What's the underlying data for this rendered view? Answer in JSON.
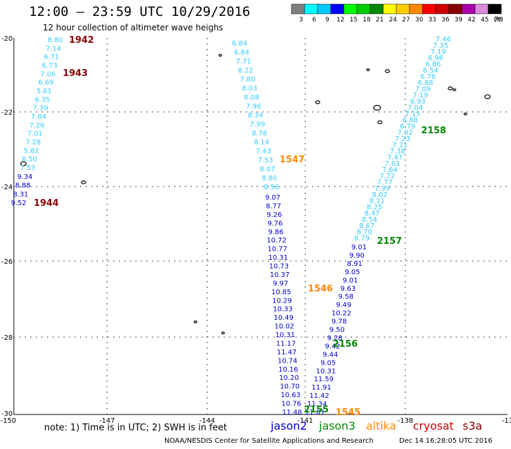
{
  "header": {
    "title": "12:00 – 23:59 UTC 10/29/2016",
    "subtitle": "12 hour collection of altimeter wave heighs"
  },
  "color_scale": {
    "unit": "(ft)",
    "bins": [
      {
        "label": "3",
        "color": "#808080"
      },
      {
        "label": "6",
        "color": "#00ffff"
      },
      {
        "label": "9",
        "color": "#00c8ff"
      },
      {
        "label": "12",
        "color": "#0000ff"
      },
      {
        "label": "15",
        "color": "#00ff00"
      },
      {
        "label": "18",
        "color": "#00cc00"
      },
      {
        "label": "21",
        "color": "#008800"
      },
      {
        "label": "24",
        "color": "#ffff00"
      },
      {
        "label": "27",
        "color": "#ffcc00"
      },
      {
        "label": "30",
        "color": "#ff8800"
      },
      {
        "label": "33",
        "color": "#ff0000"
      },
      {
        "label": "36",
        "color": "#cc0000"
      },
      {
        "label": "39",
        "color": "#880000"
      },
      {
        "label": "42",
        "color": "#aa00aa"
      },
      {
        "label": "45",
        "color": "#dd88dd"
      },
      {
        "label": "70",
        "color": "#000000"
      }
    ]
  },
  "axes": {
    "lon_ticks": [
      "-150",
      "-147",
      "-144",
      "-141",
      "-138",
      "-13"
    ],
    "lat_ticks": [
      "-20",
      "-22",
      "-24",
      "-26",
      "-28",
      "-30"
    ]
  },
  "tracks": [
    {
      "id": "track-1",
      "color": "#33ccff",
      "values": [
        "8.80",
        "7.14",
        "6.71",
        "6.73",
        "7.06",
        "6.69",
        "5.61",
        "6.35",
        "7.39",
        "7.84",
        "7.26",
        "7.01",
        "7.28",
        "5.82",
        "6.50",
        "7.53"
      ]
    },
    {
      "id": "track-1b",
      "color": "#0000cc",
      "values": [
        "9.34",
        "8.88",
        "8.31",
        "9.52"
      ]
    },
    {
      "id": "track-2a",
      "color": "#33ccff",
      "values": [
        "6.84",
        "6.84",
        "7.71",
        "8.22",
        "7.80",
        "8.03",
        "8.08",
        "7.96",
        "8.34",
        "7.99",
        "8.76",
        "8.14",
        "7.43",
        "7.53",
        "8.07",
        "8.80",
        "8.56"
      ]
    },
    {
      "id": "track-2b",
      "color": "#0000cc",
      "values": [
        "9.07",
        "8.77",
        "9.26",
        "9.76",
        "9.86",
        "10.72",
        "10.77",
        "10.31",
        "10.73",
        "10.37",
        "9.97",
        "10.85",
        "10.29",
        "10.33",
        "10.49",
        "10.02",
        "10.31",
        "11.17",
        "11.47",
        "10.74",
        "10.16",
        "10.20",
        "10.70",
        "10.63",
        "10.76",
        "11.48"
      ]
    },
    {
      "id": "track-3",
      "color": "#0000cc",
      "values": [
        "9.01",
        "9.90",
        "8.91",
        "9.05",
        "9.01",
        "9.63",
        "9.58",
        "9.49",
        "10.22",
        "9.78",
        "9.50",
        "9.28",
        "9.42",
        "9.44",
        "9.05",
        "10.31",
        "11.59",
        "11.91",
        "11.42",
        "11.34",
        "11.01"
      ]
    },
    {
      "id": "track-4",
      "color": "#33ccff",
      "values": [
        "7.46",
        "7.35",
        "7.19",
        "6.96",
        "6.86",
        "6.54",
        "6.76",
        "6.88",
        "7.09",
        "7.19",
        "6.93",
        "7.04",
        "7.15",
        "6.88",
        "6.79",
        "7.02",
        "7.23",
        "7.21",
        "7.38",
        "7.47",
        "7.61",
        "7.64",
        "7.72",
        "7.77",
        "7.99",
        "8.02",
        "8.11",
        "8.25",
        "8.47",
        "8.54",
        "8.67",
        "8.70",
        "8.79"
      ]
    }
  ],
  "time_labels": [
    {
      "text": "1942",
      "color": "#880000"
    },
    {
      "text": "1943",
      "color": "#880000"
    },
    {
      "text": "1944",
      "color": "#880000"
    },
    {
      "text": "1547",
      "color": "#ff8800"
    },
    {
      "text": "1546",
      "color": "#ff8800"
    },
    {
      "text": "1545",
      "color": "#ff8800"
    },
    {
      "text": "2158",
      "color": "#008800"
    },
    {
      "text": "2157",
      "color": "#008800"
    },
    {
      "text": "2156",
      "color": "#008800"
    },
    {
      "text": "2155",
      "color": "#008800"
    }
  ],
  "footer": {
    "note": "note:  1) Time is in UTC;  2) SWH is in feet",
    "missions": [
      {
        "name": "jason2",
        "color": "#0000cc"
      },
      {
        "name": "jason3",
        "color": "#008800"
      },
      {
        "name": "altika",
        "color": "#ff8800"
      },
      {
        "name": "cryosat",
        "color": "#cc0000"
      },
      {
        "name": "s3a",
        "color": "#880000"
      }
    ],
    "credit": "NOAA/NESDIS Center for Satellite Applications and Research",
    "timestamp": "Dec 14 16:28:05 UTC 2016"
  }
}
